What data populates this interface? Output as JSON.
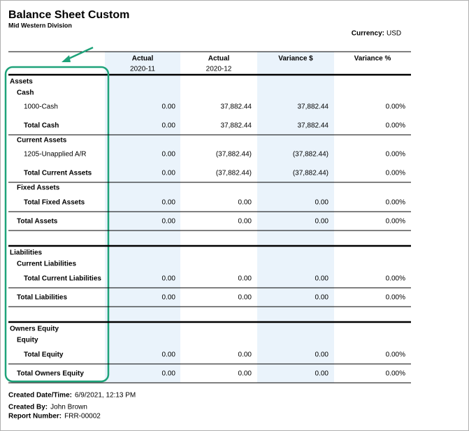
{
  "header": {
    "title": "Balance Sheet Custom",
    "subtitle": "Mid Western Division",
    "currency_label": "Currency:",
    "currency": "USD"
  },
  "columns": [
    {
      "title": "Actual",
      "period": "2020-11"
    },
    {
      "title": "Actual",
      "period": "2020-12"
    },
    {
      "title": "Variance $"
    },
    {
      "title": "Variance %"
    }
  ],
  "sections": [
    {
      "title": "Assets",
      "groups": [
        {
          "title": "Cash",
          "lines": [
            {
              "label": "1000-Cash",
              "values": [
                "0.00",
                "37,882.44",
                "37,882.44",
                "0.00%"
              ]
            }
          ],
          "total": {
            "label": "Total Cash",
            "values": [
              "0.00",
              "37,882.44",
              "37,882.44",
              "0.00%"
            ]
          }
        },
        {
          "title": "Current Assets",
          "lines": [
            {
              "label": "1205-Unapplied A/R",
              "values": [
                "0.00",
                "(37,882.44)",
                "(37,882.44)",
                "0.00%"
              ]
            }
          ],
          "total": {
            "label": "Total Current Assets",
            "values": [
              "0.00",
              "(37,882.44)",
              "(37,882.44)",
              "0.00%"
            ]
          }
        },
        {
          "title": "Fixed Assets",
          "lines": [],
          "total": {
            "label": "Total Fixed Assets",
            "values": [
              "0.00",
              "0.00",
              "0.00",
              "0.00%"
            ]
          }
        }
      ],
      "total": {
        "label": "Total Assets",
        "values": [
          "0.00",
          "0.00",
          "0.00",
          "0.00%"
        ]
      }
    },
    {
      "title": "Liabilities",
      "groups": [
        {
          "title": "Current Liabilities",
          "lines": [],
          "total": {
            "label": "Total Current Liabilities",
            "values": [
              "0.00",
              "0.00",
              "0.00",
              "0.00%"
            ]
          }
        }
      ],
      "total": {
        "label": "Total Liabilities",
        "values": [
          "0.00",
          "0.00",
          "0.00",
          "0.00%"
        ]
      }
    },
    {
      "title": "Owners Equity",
      "groups": [
        {
          "title": "Equity",
          "lines": [],
          "total": {
            "label": "Total Equity",
            "values": [
              "0.00",
              "0.00",
              "0.00",
              "0.00%"
            ]
          }
        }
      ],
      "total": {
        "label": "Total Owners Equity",
        "values": [
          "0.00",
          "0.00",
          "0.00",
          "0.00%"
        ]
      }
    }
  ],
  "footer": [
    {
      "label": "Created Date/Time:",
      "value": "6/9/2021, 12:13 PM"
    },
    {
      "label": "Created By:",
      "value": "John Brown"
    },
    {
      "label": "Report Number:",
      "value": "FRR-00002"
    }
  ]
}
